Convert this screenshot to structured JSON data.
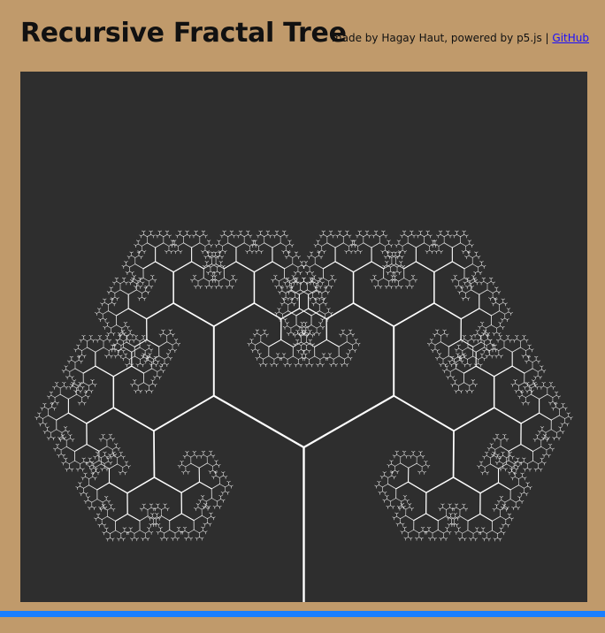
{
  "header": {
    "title": "Recursive Fractal Tree",
    "credits_text": "made by Hagay Haut, powered by p5.js |",
    "github_link": "GitHub"
  },
  "canvas": {
    "background_color": "#2e2e2e",
    "branch_color": "#ffffff"
  },
  "colors": {
    "page_background": "#c09a6b",
    "bottom_bar": "#1a7fff",
    "link": "#1a0dff"
  }
}
